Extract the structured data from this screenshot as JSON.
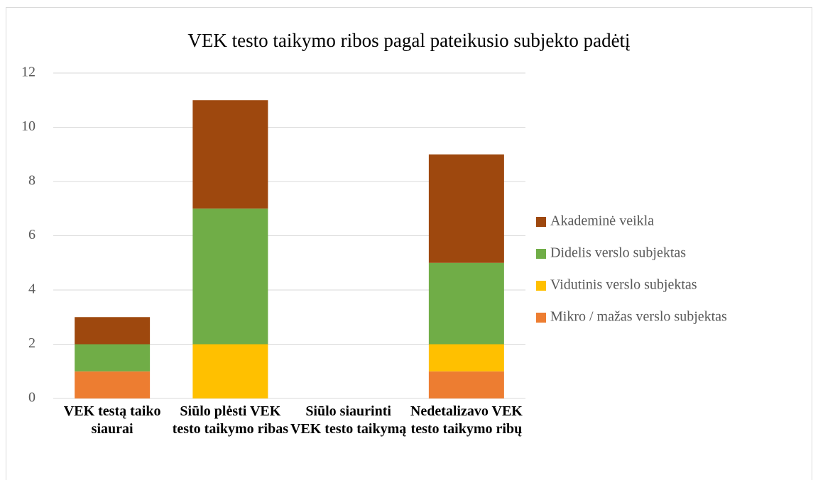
{
  "chart_data": {
    "type": "stacked_bar",
    "title": "VEK testo taikymo ribos pagal pateikusio subjekto padėtį",
    "categories": [
      "VEK testą taiko siaurai",
      "Siūlo plėsti VEK testo taikymo ribas",
      "Siūlo siaurinti VEK testo taikymą",
      "Nedetalizavo VEK testo taikymo ribų"
    ],
    "series": [
      {
        "name": "Mikro / mažas verslo subjektas",
        "color": "#ed7d31",
        "values": [
          1,
          0,
          0,
          1
        ]
      },
      {
        "name": "Vidutinis verslo subjektas",
        "color": "#ffc000",
        "values": [
          0,
          2,
          0,
          1
        ]
      },
      {
        "name": "Didelis verslo subjektas",
        "color": "#70ad47",
        "values": [
          1,
          5,
          0,
          3
        ]
      },
      {
        "name": "Akademinė veikla",
        "color": "#9e480e",
        "values": [
          1,
          4,
          0,
          4
        ]
      }
    ],
    "ylim": [
      0,
      12
    ],
    "yticks": [
      0,
      2,
      4,
      6,
      8,
      10,
      12
    ],
    "grid": true,
    "legend": "right"
  }
}
